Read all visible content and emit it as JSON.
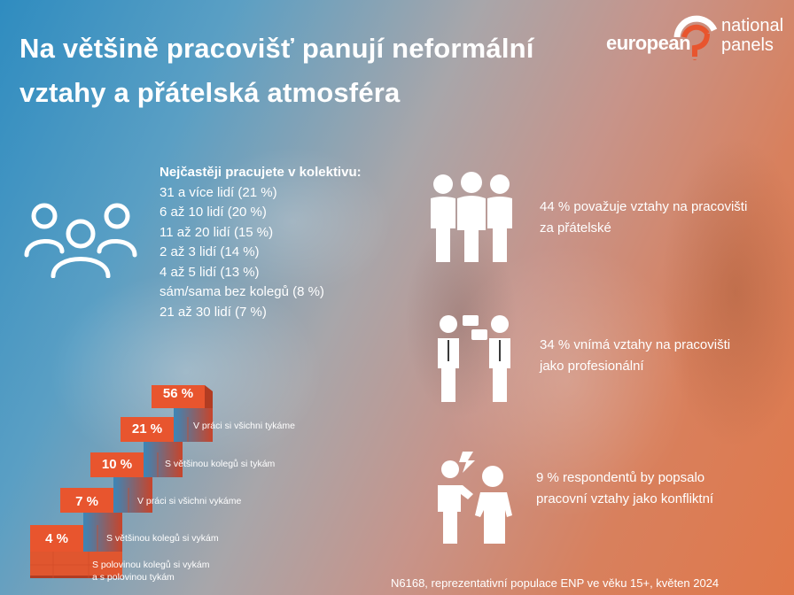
{
  "title": "Na většině pracovišť panují neformální vztahy a přátelská atmosféra",
  "logo": {
    "word1": "european",
    "word2": "national",
    "word3": "panels"
  },
  "collective": {
    "heading": "Nejčastěji pracujete v kolektivu:",
    "items": [
      "31 a více lidí  (21 %)",
      "6 až 10 lidí (20 %)",
      "11 až 20 lidí (15 %)",
      "2 až 3 lidí (14 %)",
      "4 až 5 lidí (13 %)",
      "sám/sama bez kolegů (8 %)",
      "21 až 30 lidí (7 %)"
    ]
  },
  "stats": [
    {
      "line1": "44 % považuje vztahy na pracovišti",
      "line2": "za přátelské",
      "icon": "friends-group-icon"
    },
    {
      "line1": "34 % vnímá vztahy na pracovišti",
      "line2": "jako profesionální",
      "icon": "business-talk-icon"
    },
    {
      "line1": "9 % respondentů by popsalo",
      "line2": "pracovní vztahy jako konfliktní",
      "icon": "conflict-icon"
    }
  ],
  "stairs": [
    {
      "value": "56 %",
      "label": ""
    },
    {
      "value": "21 %",
      "label": "V práci si všichni tykáme"
    },
    {
      "value": "10 %",
      "label": "S většinou kolegů si tykám"
    },
    {
      "value": "7 %",
      "label": "V práci si všichni vykáme"
    },
    {
      "value": "4 %",
      "label": "S většinou kolegů si vykám"
    },
    {
      "value": "",
      "label": "S polovinou kolegů si vykám",
      "label2": "a s polovinou tykám"
    }
  ],
  "colors": {
    "accent": "#e8552e",
    "stair_side": "#c8442a",
    "stair_top": "#f07a50",
    "blue": "#2f8cc0"
  },
  "source": "N6168, reprezentativní populace ENP ve věku 15+, květen 2024"
}
